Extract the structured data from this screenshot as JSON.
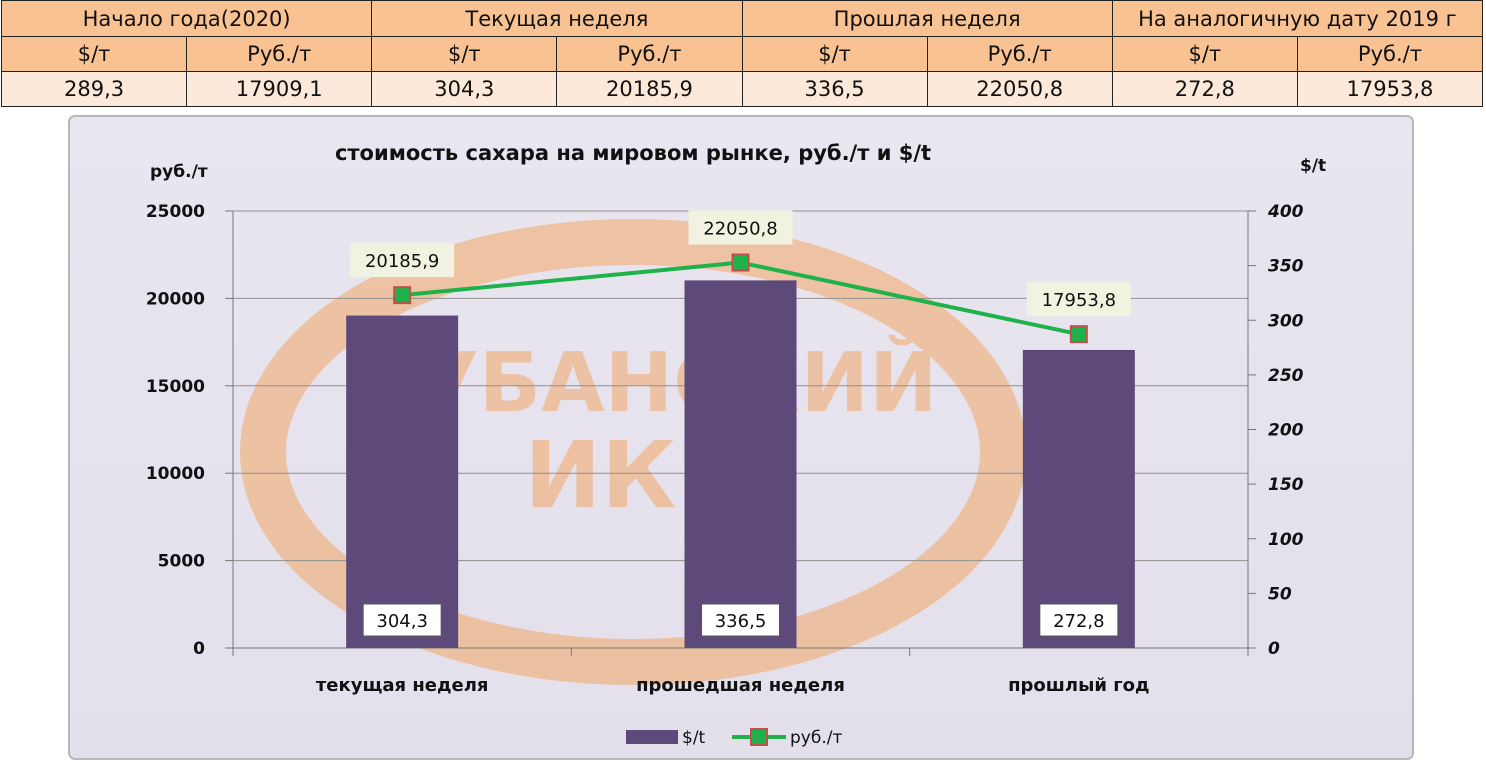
{
  "table": {
    "headers": [
      "Начало года(2020)",
      "Текущая неделя",
      "Прошлая неделя",
      "На аналогичную дату 2019 г"
    ],
    "units": [
      "$/т",
      "Руб./т",
      "$/т",
      "Руб./т",
      "$/т",
      "Руб./т",
      "$/т",
      "Руб./т"
    ],
    "values": [
      "289,3",
      "17909,1",
      "304,3",
      "20185,9",
      "336,5",
      "22050,8",
      "272,8",
      "17953,8"
    ]
  },
  "watermark": {
    "line1": "КУБАНСКИЙ",
    "line2": "ИКЦ"
  },
  "colors": {
    "bar": "#5e4a7a",
    "line": "#1fb24a",
    "marker_fill": "#1fb24a",
    "marker_edge": "#c0504d",
    "plot_bg": "#e8e4ef",
    "watermark": "#f3a766"
  },
  "chart_data": {
    "type": "bar",
    "title": "стоимость сахара на мировом рынке, руб./т и $/t",
    "ylabel_left": "руб./т",
    "ylabel_right": "$/t",
    "categories": [
      "текущая  неделя",
      "прошедшая неделя",
      "прошлый  год"
    ],
    "ylim_left": [
      0,
      25000
    ],
    "ylim_right": [
      0,
      400
    ],
    "yticks_left": [
      "25000",
      "20000",
      "15000",
      "10000",
      "5000",
      "0"
    ],
    "yticks_right": [
      "400",
      "350",
      "300",
      "250",
      "200",
      "150",
      "100",
      "50",
      "0"
    ],
    "grid": true,
    "legend_position": "bottom",
    "series": [
      {
        "name": "$/t",
        "type": "bar",
        "axis": "right",
        "values": [
          304.3,
          336.5,
          272.8
        ],
        "labels": [
          "304,3",
          "336,5",
          "272,8"
        ]
      },
      {
        "name": "руб./т",
        "type": "line",
        "axis": "left",
        "values": [
          20185.9,
          22050.8,
          17953.8
        ],
        "labels": [
          "20185,9",
          "22050,8",
          "17953,8"
        ]
      }
    ]
  }
}
